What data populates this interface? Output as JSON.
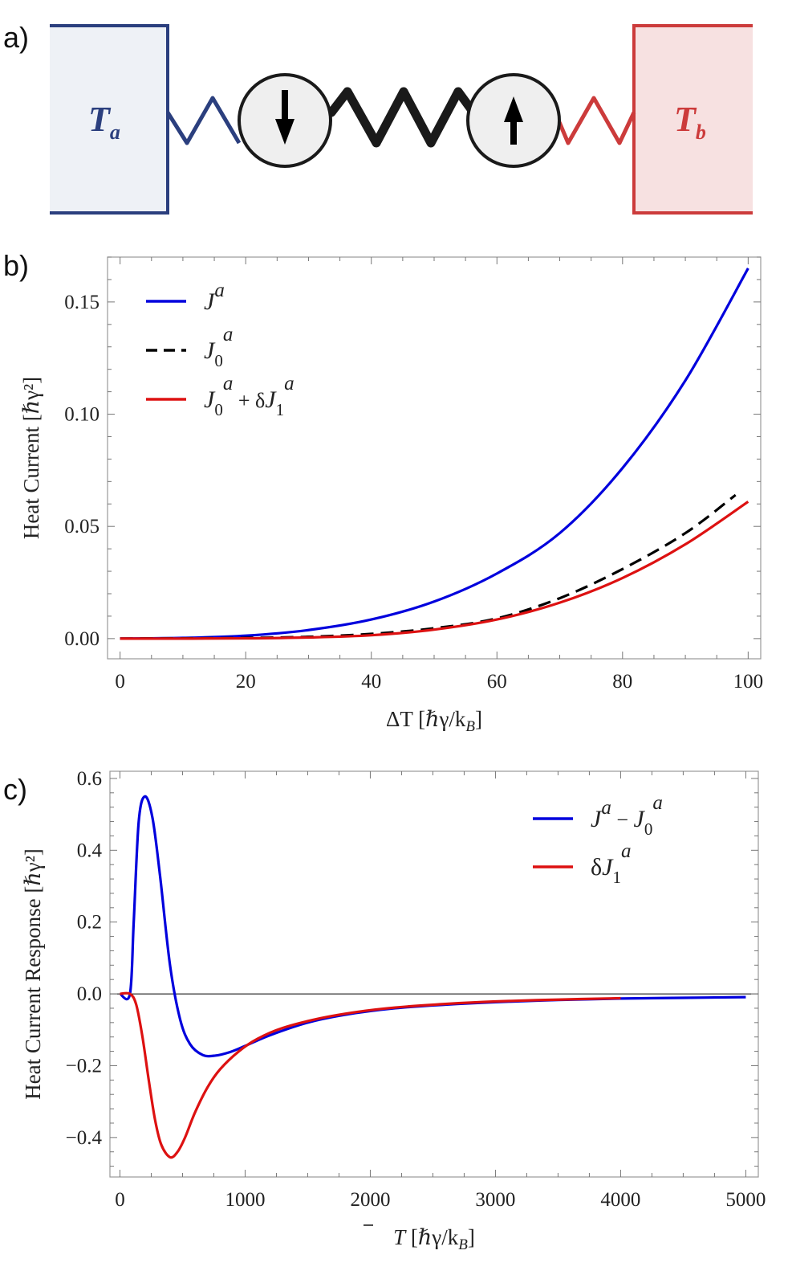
{
  "panel_labels": {
    "a": "a)",
    "b": "b)",
    "c": "c)"
  },
  "diagram": {
    "bath_left": {
      "label": "T",
      "sub": "a",
      "color": "#2b3f7e",
      "fill": "#eef1f6"
    },
    "bath_right": {
      "label": "T",
      "sub": "b",
      "color": "#cc3b3b",
      "fill": "#f7e1e1"
    },
    "spin_left": "down",
    "spin_right": "up"
  },
  "chart_data": [
    {
      "type": "line",
      "panel": "b",
      "xlabel": "ΔT [ℏγ/k",
      "xlabel_sub": "B",
      "xlabel_end": "]",
      "ylabel": "Heat Current [ℏγ²]",
      "xlim": [
        -2,
        102
      ],
      "ylim": [
        -0.009,
        0.17
      ],
      "xticks": [
        0,
        20,
        40,
        60,
        80,
        100
      ],
      "xtick_labels": [
        "0",
        "20",
        "40",
        "60",
        "80",
        "100"
      ],
      "yticks": [
        0.0,
        0.05,
        0.1,
        0.15
      ],
      "ytick_labels": [
        "0.00",
        "0.05",
        "0.10",
        "0.15"
      ],
      "legend_position": "top-left",
      "series": [
        {
          "name": "J^a",
          "legend": {
            "main": "J",
            "sup": "a"
          },
          "color": "#0000dd",
          "dash": "solid",
          "x": [
            0,
            10,
            20,
            30,
            40,
            50,
            60,
            70,
            80,
            90,
            100
          ],
          "y": [
            0.0,
            0.0003,
            0.0013,
            0.0038,
            0.0085,
            0.0165,
            0.029,
            0.047,
            0.076,
            0.115,
            0.165
          ]
        },
        {
          "name": "J_0^a",
          "legend": {
            "main": "J",
            "sub": "0",
            "sup": "a"
          },
          "color": "#000000",
          "dash": "dashed",
          "x": [
            0,
            10,
            20,
            30,
            40,
            50,
            60,
            70,
            80,
            90,
            98
          ],
          "y": [
            0.0,
            0.0001,
            0.0003,
            0.0008,
            0.0021,
            0.0046,
            0.009,
            0.018,
            0.031,
            0.047,
            0.064
          ]
        },
        {
          "name": "J_0^a + δJ_1^a",
          "legend": {
            "main": "J",
            "sub": "0",
            "sup": "a",
            "plus": "+ δ",
            "main2": "J",
            "sub2": "1",
            "sup2": "a"
          },
          "color": "#dd1111",
          "dash": "solid",
          "x": [
            0,
            10,
            20,
            30,
            40,
            50,
            60,
            70,
            80,
            90,
            100
          ],
          "y": [
            0.0,
            0.0,
            0.0001,
            0.0005,
            0.0015,
            0.004,
            0.0085,
            0.016,
            0.027,
            0.042,
            0.061
          ]
        }
      ]
    },
    {
      "type": "line",
      "panel": "c",
      "xlabel": "T",
      "xlabel_rest": " [ℏγ/k",
      "xlabel_sub": "B",
      "xlabel_end": "]",
      "ylabel": "Heat Current Response [ℏγ²]",
      "xlim": [
        -80,
        5100
      ],
      "ylim": [
        -0.51,
        0.62
      ],
      "xticks": [
        0,
        1000,
        2000,
        3000,
        4000,
        5000
      ],
      "xtick_labels": [
        "0",
        "1000",
        "2000",
        "3000",
        "4000",
        "5000"
      ],
      "yticks": [
        -0.4,
        -0.2,
        0.0,
        0.2,
        0.4,
        0.6
      ],
      "ytick_labels": [
        "−0.4",
        "−0.2",
        "0.0",
        "0.2",
        "0.4",
        "0.6"
      ],
      "zero_line": true,
      "legend_position": "top-right",
      "series": [
        {
          "name": "J^a − J_0^a",
          "legend": {
            "main": "J",
            "sup": "a",
            "minus": "− ",
            "main2": "J",
            "sub2": "0",
            "sup2": "a"
          },
          "color": "#0000dd",
          "dash": "solid",
          "x": [
            0,
            80,
            110,
            150,
            200,
            260,
            320,
            400,
            480,
            560,
            660,
            760,
            880,
            1000,
            1200,
            1500,
            1800,
            2200,
            2600,
            3000,
            3500,
            4000,
            4500,
            5000
          ],
          "y": [
            0.0,
            0.0,
            0.2,
            0.48,
            0.55,
            0.49,
            0.33,
            0.08,
            -0.07,
            -0.14,
            -0.17,
            -0.172,
            -0.162,
            -0.145,
            -0.115,
            -0.08,
            -0.058,
            -0.04,
            -0.03,
            -0.023,
            -0.017,
            -0.013,
            -0.011,
            -0.009
          ]
        },
        {
          "name": "δJ_1^a",
          "legend": {
            "plus": "δ",
            "main": "J",
            "sub": "1",
            "sup": "a"
          },
          "color": "#dd1111",
          "dash": "solid",
          "x": [
            0,
            80,
            130,
            180,
            230,
            280,
            330,
            400,
            460,
            520,
            600,
            700,
            800,
            950,
            1100,
            1300,
            1600,
            1900,
            2200,
            2600,
            3000,
            3500,
            4000
          ],
          "y": [
            0.0,
            0.0,
            -0.03,
            -0.12,
            -0.24,
            -0.35,
            -0.42,
            -0.455,
            -0.44,
            -0.4,
            -0.33,
            -0.26,
            -0.21,
            -0.16,
            -0.125,
            -0.095,
            -0.068,
            -0.05,
            -0.038,
            -0.028,
            -0.021,
            -0.016,
            -0.012
          ]
        }
      ]
    }
  ]
}
